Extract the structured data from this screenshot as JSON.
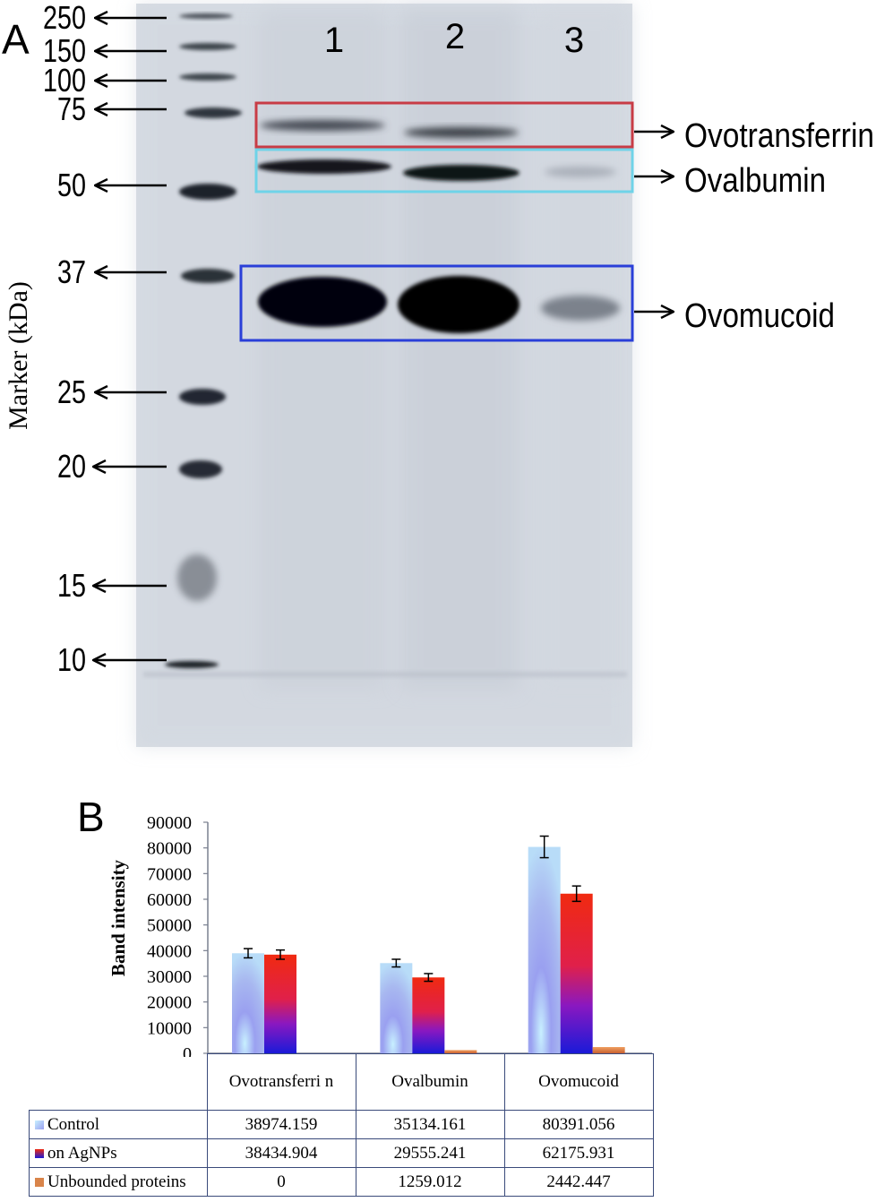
{
  "panel_a": {
    "label": "A",
    "y_axis_label": "Marker (kDa)",
    "markers": [
      {
        "label": "250",
        "y": 18
      },
      {
        "label": "150",
        "y": 55
      },
      {
        "label": "100",
        "y": 88
      },
      {
        "label": "75",
        "y": 120
      },
      {
        "label": "50",
        "y": 205
      },
      {
        "label": "37",
        "y": 302
      },
      {
        "label": "25",
        "y": 436
      },
      {
        "label": "20",
        "y": 519
      },
      {
        "label": "15",
        "y": 652
      },
      {
        "label": "10",
        "y": 735
      }
    ],
    "lanes": [
      "1",
      "2",
      "3"
    ],
    "bands": [
      {
        "label": "Ovotransferrin",
        "color": "#c83c46"
      },
      {
        "label": "Ovalbumin",
        "color": "#6fd3e8"
      },
      {
        "label": "Ovomucoid",
        "color": "#2a3fd8"
      }
    ]
  },
  "panel_b": {
    "label": "B"
  },
  "chart_data": {
    "type": "bar",
    "title": "",
    "ylabel": "Band intensity",
    "xlabel": "",
    "ylim": [
      0,
      90000
    ],
    "yticks": [
      "90000",
      "80000",
      "70000",
      "60000",
      "50000",
      "40000",
      "30000",
      "20000",
      "10000",
      "0"
    ],
    "categories": [
      "Ovotransferrin",
      "Ovalbumin",
      "Ovomucoid"
    ],
    "series": [
      {
        "name": "Control",
        "values": [
          38974.159,
          35134.161,
          80391.056
        ],
        "errors": [
          1800,
          1500,
          4200
        ],
        "color": "#a8c8f0"
      },
      {
        "name": "on AgNPs",
        "values": [
          38434.904,
          29555.241,
          62175.931
        ],
        "errors": [
          1800,
          1500,
          3000
        ],
        "color": "#e8262a"
      },
      {
        "name": "Unbounded proteins",
        "values": [
          0,
          1259.012,
          2442.447
        ],
        "errors": [
          0,
          0,
          0
        ],
        "color": "#d9844a"
      }
    ],
    "table": {
      "headers": [
        "Ovotransferri n",
        "Ovalbumin",
        "Ovomucoid"
      ],
      "rows": [
        {
          "label": "Control",
          "cells": [
            "38974.159",
            "35134.161",
            "80391.056"
          ]
        },
        {
          "label": "on AgNPs",
          "cells": [
            "38434.904",
            "29555.241",
            "62175.931"
          ]
        },
        {
          "label": "Unbounded proteins",
          "cells": [
            "0",
            "1259.012",
            "2442.447"
          ]
        }
      ]
    }
  }
}
